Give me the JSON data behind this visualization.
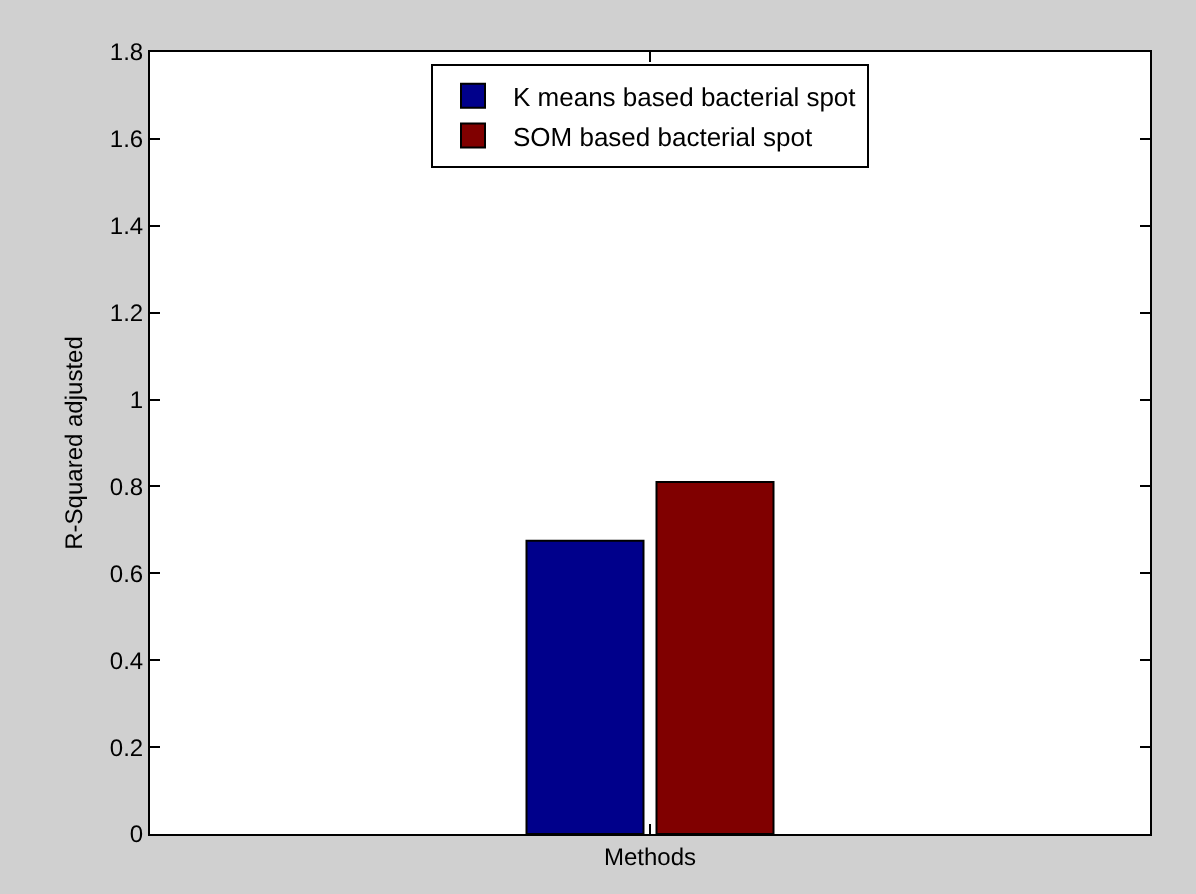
{
  "chart_data": {
    "type": "bar",
    "ylabel": "R-Squared adjusted",
    "categories": [
      "Methods"
    ],
    "series": [
      {
        "name": "K means based bacterial spot",
        "color": "#00008b",
        "values": [
          0.675
        ]
      },
      {
        "name": "SOM based bacterial spot",
        "color": "#800000",
        "values": [
          0.81
        ]
      }
    ],
    "ylim": [
      0,
      1.8
    ],
    "yticks": [
      0,
      0.2,
      0.4,
      0.6,
      0.8,
      1,
      1.2,
      1.4,
      1.6,
      1.8
    ],
    "grid": false,
    "legend": "top"
  }
}
